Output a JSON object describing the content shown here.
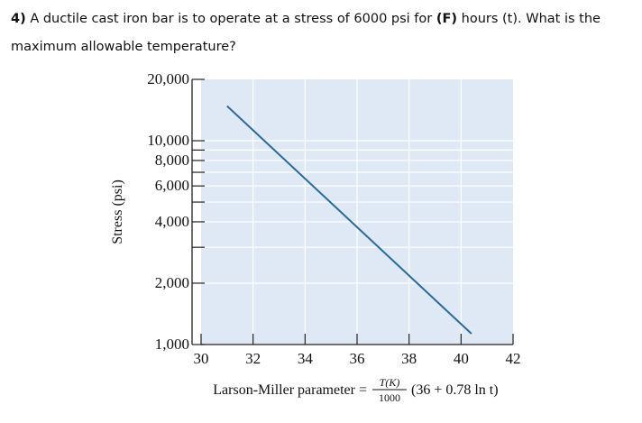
{
  "question": {
    "number": "4)",
    "text_before": " A ductile cast iron bar is to operate at a stress of 6000 psi for ",
    "highlight": "(F)",
    "text_after": " hours (t). What is the maximum allowable temperature?"
  },
  "chart_data": {
    "type": "line",
    "title": "",
    "ylabel": "Stress (psi)",
    "xlabel": {
      "prefix": "Larson-Miller parameter =",
      "fraction_numerator": "T(K)",
      "fraction_denominator": "1000",
      "suffix": "(36 + 0.78 ln t)"
    },
    "x_scale": "linear",
    "y_scale": "log",
    "xlim": [
      30,
      42
    ],
    "ylim": [
      1000,
      20000
    ],
    "x_ticks": [
      30,
      32,
      34,
      36,
      38,
      40,
      42
    ],
    "x_tick_labels": [
      "30",
      "32",
      "34",
      "36",
      "38",
      "40",
      "42"
    ],
    "y_ticks": [
      1000,
      2000,
      3000,
      4000,
      5000,
      6000,
      7000,
      8000,
      9000,
      10000,
      20000
    ],
    "y_tick_labels": [
      {
        "value": 1000,
        "label": "1,000"
      },
      {
        "value": 2000,
        "label": "2,000"
      },
      {
        "value": 4000,
        "label": "4,000"
      },
      {
        "value": 6000,
        "label": "6,000"
      },
      {
        "value": 8000,
        "label": "8,000"
      },
      {
        "value": 10000,
        "label": "10,000"
      },
      {
        "value": 20000,
        "label": "20,000"
      }
    ],
    "grid": true,
    "colors": {
      "plot_background": "#dfe9f5",
      "grid": "#ffffff",
      "line": "#2a6a96",
      "axis": "#222222"
    },
    "series": [
      {
        "name": "",
        "x": [
          31.0,
          40.4
        ],
        "y": [
          14800,
          1130
        ]
      }
    ]
  }
}
